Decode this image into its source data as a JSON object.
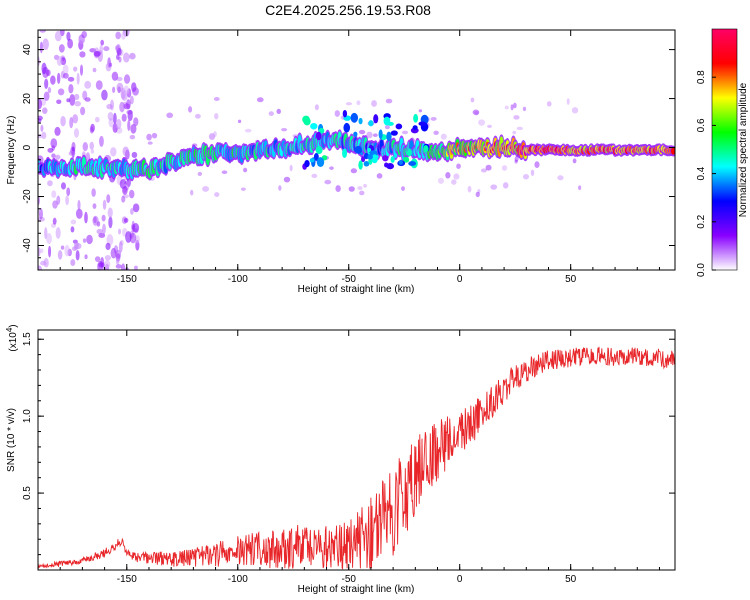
{
  "figure": {
    "title": "C2E4.2025.256.19.53.R08"
  },
  "chart_data": [
    {
      "type": "heatmap",
      "xlabel": "Height of straight line (km)",
      "ylabel": "Frequency (Hz)",
      "xlim": [
        -190,
        97
      ],
      "ylim": [
        -50,
        48
      ],
      "xticks": [
        -150,
        -100,
        -50,
        0,
        50
      ],
      "yticks": [
        -40,
        -20,
        0,
        20,
        40
      ],
      "colorbar": {
        "label": "Normalized spectral amplitude",
        "range": [
          0,
          1
        ],
        "ticks": [
          "0.0",
          "0.2",
          "0.4",
          "0.6",
          "0.8"
        ],
        "colors": [
          "#ffffff",
          "#8800ff",
          "#0000ff",
          "#00ffff",
          "#00ff00",
          "#ffff00",
          "#ff0000",
          "#ff0066"
        ]
      },
      "ridge": [
        {
          "x": -190,
          "freq": -8,
          "amp": 0.4
        },
        {
          "x": -180,
          "freq": -8,
          "amp": 0.35
        },
        {
          "x": -170,
          "freq": -8,
          "amp": 0.55
        },
        {
          "x": -160,
          "freq": -8,
          "amp": 0.5
        },
        {
          "x": -150,
          "freq": -9,
          "amp": 0.45
        },
        {
          "x": -140,
          "freq": -9,
          "amp": 0.5
        },
        {
          "x": -130,
          "freq": -6,
          "amp": 0.45
        },
        {
          "x": -120,
          "freq": -4,
          "amp": 0.55
        },
        {
          "x": -110,
          "freq": -2,
          "amp": 0.5
        },
        {
          "x": -100,
          "freq": -2,
          "amp": 0.5
        },
        {
          "x": -90,
          "freq": -1,
          "amp": 0.45
        },
        {
          "x": -80,
          "freq": 0,
          "amp": 0.45
        },
        {
          "x": -70,
          "freq": 1,
          "amp": 0.5
        },
        {
          "x": -60,
          "freq": 3,
          "amp": 0.45
        },
        {
          "x": -50,
          "freq": 2,
          "amp": 0.45
        },
        {
          "x": -40,
          "freq": -1,
          "amp": 0.4
        },
        {
          "x": -30,
          "freq": 0,
          "amp": 0.45
        },
        {
          "x": -20,
          "freq": -1,
          "amp": 0.5
        },
        {
          "x": -10,
          "freq": -2,
          "amp": 0.6
        },
        {
          "x": 0,
          "freq": 0,
          "amp": 0.75
        },
        {
          "x": 10,
          "freq": 0,
          "amp": 0.8
        },
        {
          "x": 20,
          "freq": 0,
          "amp": 0.85
        },
        {
          "x": 30,
          "freq": -1,
          "amp": 0.95
        },
        {
          "x": 40,
          "freq": -1,
          "amp": 1.0
        },
        {
          "x": 50,
          "freq": -1,
          "amp": 0.95
        },
        {
          "x": 60,
          "freq": -1,
          "amp": 0.95
        },
        {
          "x": 70,
          "freq": -1,
          "amp": 0.95
        },
        {
          "x": 80,
          "freq": -1,
          "amp": 0.95
        },
        {
          "x": 90,
          "freq": -1,
          "amp": 1.0
        }
      ]
    },
    {
      "type": "line",
      "xlabel": "Height of straight line (km)",
      "ylabel": "SNR (10 * v/v)",
      "yscale_label": "(x10",
      "yscale_exp": "4",
      "yscale_close": ")",
      "xlim": [
        -190,
        97
      ],
      "ylim": [
        0,
        1.56
      ],
      "xticks": [
        -150,
        -100,
        -50,
        0,
        50
      ],
      "yticks": [
        "0.5",
        "1.0",
        "1.5"
      ],
      "color": "#e8262a",
      "x": [
        -190,
        -180,
        -170,
        -160,
        -155,
        -152,
        -150,
        -145,
        -140,
        -130,
        -120,
        -110,
        -100,
        -90,
        -80,
        -70,
        -60,
        -50,
        -45,
        -40,
        -35,
        -30,
        -25,
        -20,
        -15,
        -10,
        -5,
        0,
        5,
        10,
        15,
        20,
        25,
        30,
        35,
        40,
        50,
        60,
        70,
        80,
        90,
        97
      ],
      "y": [
        0.02,
        0.04,
        0.06,
        0.11,
        0.16,
        0.2,
        0.1,
        0.08,
        0.08,
        0.07,
        0.08,
        0.1,
        0.12,
        0.14,
        0.13,
        0.16,
        0.15,
        0.14,
        0.18,
        0.22,
        0.28,
        0.38,
        0.5,
        0.62,
        0.7,
        0.78,
        0.85,
        0.9,
        0.95,
        1.02,
        1.1,
        1.18,
        1.25,
        1.3,
        1.33,
        1.36,
        1.38,
        1.4,
        1.38,
        1.39,
        1.38,
        1.36
      ],
      "noise": [
        0.01,
        0.02,
        0.02,
        0.03,
        0.03,
        0.03,
        0.03,
        0.03,
        0.04,
        0.05,
        0.06,
        0.08,
        0.1,
        0.12,
        0.14,
        0.15,
        0.15,
        0.18,
        0.22,
        0.28,
        0.3,
        0.3,
        0.3,
        0.25,
        0.22,
        0.2,
        0.18,
        0.14,
        0.14,
        0.12,
        0.1,
        0.1,
        0.09,
        0.08,
        0.07,
        0.07,
        0.06,
        0.06,
        0.06,
        0.06,
        0.06,
        0.06
      ]
    }
  ]
}
